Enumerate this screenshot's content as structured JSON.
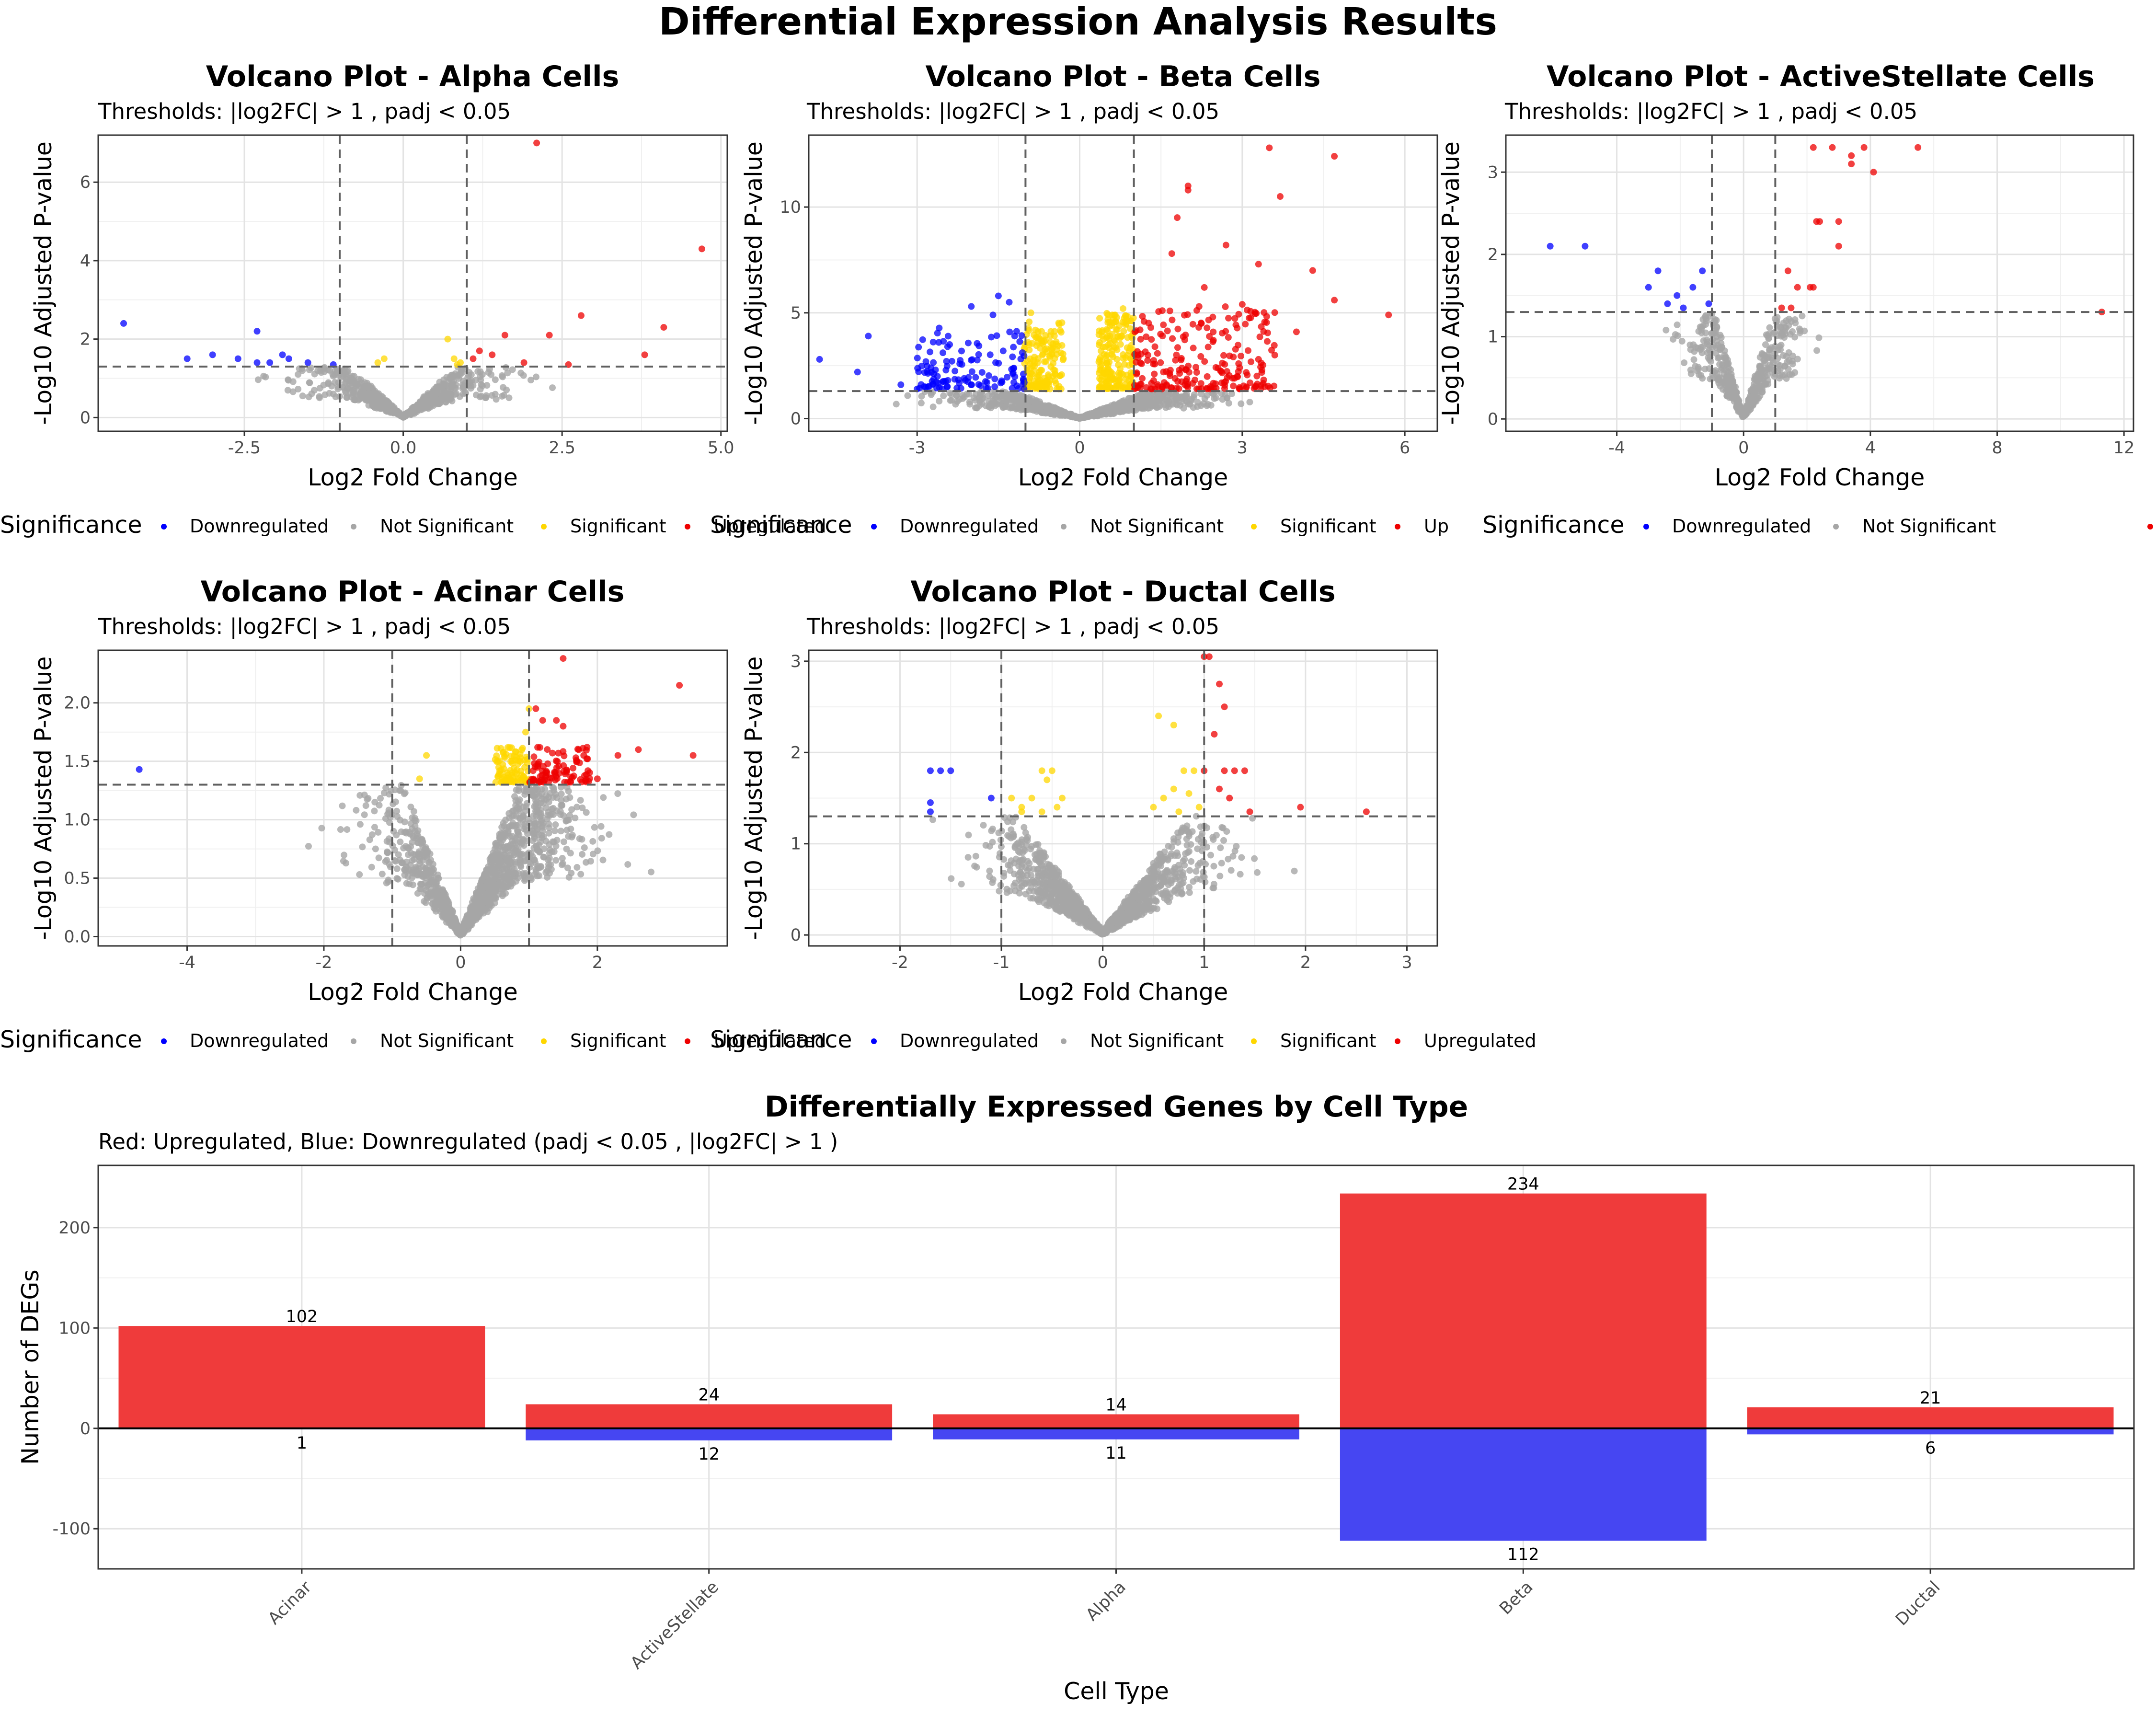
{
  "main_title": "Differential Expression Analysis Results",
  "colors": {
    "Downregulated": "#0000ff",
    "Not Significant": "#a6a6a6",
    "Significant": "#ffd700",
    "Upregulated": "#ee0000",
    "bar_up": "#ef3b3b",
    "bar_down": "#4646f2"
  },
  "chart_data": [
    {
      "type": "scatter",
      "title": "Volcano Plot - Alpha Cells",
      "subtitle": "Thresholds: |log2FC| > 1 , padj < 0.05",
      "xlabel": "Log2 Fold Change",
      "ylabel": "-Log10 Adjusted P-value",
      "xlim": [
        -4.8,
        5.1
      ],
      "ylim": [
        -0.35,
        7.2
      ],
      "xticks": [
        -2.5,
        0.0,
        2.5,
        5.0
      ],
      "xtick_labels": [
        "-2.5",
        "0.0",
        "2.5",
        "5.0"
      ],
      "yticks": [
        0,
        2,
        4,
        6
      ],
      "ytick_labels": [
        "0",
        "2",
        "4",
        "6"
      ],
      "thresholds": {
        "x": [
          -1,
          1
        ],
        "y": 1.3
      },
      "legend": {
        "title": "Significance",
        "position": "bottom",
        "labels": [
          "Downregulated",
          "Not Significant",
          "Significant",
          "Upregulated"
        ]
      },
      "cloud": {
        "spread": 1.6,
        "ymax": 1.3,
        "n": 700,
        "seed": 11
      },
      "series": [
        {
          "name": "Downregulated",
          "points": [
            [
              -4.4,
              2.4
            ],
            [
              -3.4,
              1.5
            ],
            [
              -3.0,
              1.6
            ],
            [
              -2.6,
              1.5
            ],
            [
              -2.3,
              2.2
            ],
            [
              -2.3,
              1.4
            ],
            [
              -2.1,
              1.4
            ],
            [
              -1.9,
              1.6
            ],
            [
              -1.8,
              1.5
            ],
            [
              -1.5,
              1.4
            ],
            [
              -1.1,
              1.35
            ]
          ]
        },
        {
          "name": "Significant",
          "points": [
            [
              -0.4,
              1.4
            ],
            [
              -0.3,
              1.5
            ],
            [
              0.7,
              2.0
            ],
            [
              0.8,
              1.5
            ],
            [
              0.9,
              1.4
            ],
            [
              0.85,
              1.35
            ]
          ]
        },
        {
          "name": "Upregulated",
          "points": [
            [
              2.1,
              7.0
            ],
            [
              4.7,
              4.3
            ],
            [
              1.2,
              1.7
            ],
            [
              1.4,
              1.6
            ],
            [
              1.6,
              2.1
            ],
            [
              2.3,
              2.1
            ],
            [
              2.8,
              2.6
            ],
            [
              3.8,
              1.6
            ],
            [
              4.1,
              2.3
            ],
            [
              1.1,
              1.5
            ],
            [
              1.9,
              1.4
            ],
            [
              2.6,
              1.35
            ]
          ]
        }
      ]
    },
    {
      "type": "scatter",
      "title": "Volcano Plot - Beta Cells",
      "subtitle": "Thresholds: |log2FC| > 1 , padj < 0.05",
      "xlabel": "Log2 Fold Change",
      "ylabel": "-Log10 Adjusted P-value",
      "xlim": [
        -5.0,
        6.6
      ],
      "ylim": [
        -0.6,
        13.4
      ],
      "xticks": [
        -3,
        0,
        3,
        6
      ],
      "xtick_labels": [
        "-3",
        "0",
        "3",
        "6"
      ],
      "yticks": [
        0,
        5,
        10
      ],
      "ytick_labels": [
        "0",
        "5",
        "10"
      ],
      "thresholds": {
        "x": [
          -1,
          1
        ],
        "y": 1.3
      },
      "legend": {
        "title": "Significance",
        "position": "bottom",
        "labels": [
          "Downregulated",
          "Not Significant",
          "Significant",
          "Up"
        ]
      },
      "cloud": {
        "spread": 2.4,
        "ymax": 1.3,
        "n": 900,
        "seed": 23
      },
      "band_clusters": [
        {
          "series": "Significant",
          "xmin": -1.05,
          "xmax": -0.3,
          "ymin": 1.4,
          "ymax": 4.6,
          "n": 150,
          "seed": 3
        },
        {
          "series": "Significant",
          "xmin": 0.35,
          "xmax": 1.0,
          "ymin": 1.4,
          "ymax": 5.0,
          "n": 190,
          "seed": 4
        },
        {
          "series": "Downregulated",
          "xmin": -3.0,
          "xmax": -1.0,
          "ymin": 1.4,
          "ymax": 4.4,
          "n": 120,
          "seed": 5
        },
        {
          "series": "Upregulated",
          "xmin": 1.0,
          "xmax": 3.6,
          "ymin": 1.4,
          "ymax": 5.3,
          "n": 220,
          "seed": 6
        }
      ],
      "series": [
        {
          "name": "Downregulated",
          "points": [
            [
              -4.8,
              2.8
            ],
            [
              -4.1,
              2.2
            ],
            [
              -3.9,
              3.9
            ],
            [
              -3.3,
              1.6
            ],
            [
              -3.0,
              1.4
            ],
            [
              -2.6,
              3.6
            ],
            [
              -2.4,
              3.5
            ],
            [
              -2.0,
              5.3
            ],
            [
              -1.5,
              5.8
            ],
            [
              -1.3,
              5.5
            ],
            [
              -1.6,
              4.9
            ],
            [
              -1.2,
              3.9
            ]
          ]
        },
        {
          "name": "Significant",
          "points": [
            [
              -0.9,
              5.0
            ],
            [
              0.8,
              5.2
            ],
            [
              0.6,
              4.9
            ]
          ]
        },
        {
          "name": "Upregulated",
          "points": [
            [
              3.5,
              12.8
            ],
            [
              4.7,
              12.4
            ],
            [
              2.0,
              11.0
            ],
            [
              2.0,
              10.8
            ],
            [
              3.7,
              10.5
            ],
            [
              1.8,
              9.5
            ],
            [
              1.7,
              7.8
            ],
            [
              2.7,
              8.2
            ],
            [
              3.3,
              7.3
            ],
            [
              4.3,
              7.0
            ],
            [
              4.7,
              5.6
            ],
            [
              5.7,
              4.9
            ],
            [
              2.3,
              6.2
            ],
            [
              3.0,
              5.4
            ],
            [
              4.0,
              4.1
            ],
            [
              3.3,
              2.8
            ],
            [
              3.6,
              3.0
            ]
          ]
        }
      ]
    },
    {
      "type": "scatter",
      "title": "Volcano Plot - ActiveStellate Cells",
      "subtitle": "Thresholds: |log2FC| > 1 , padj < 0.05",
      "xlabel": "Log2 Fold Change",
      "ylabel": "-Log10 Adjusted P-value",
      "xlim": [
        -7.5,
        12.3
      ],
      "ylim": [
        -0.15,
        3.45
      ],
      "xticks": [
        -4,
        0,
        4,
        8,
        12
      ],
      "xtick_labels": [
        "-4",
        "0",
        "4",
        "8",
        "12"
      ],
      "yticks": [
        0,
        1,
        2,
        3
      ],
      "ytick_labels": [
        "0",
        "1",
        "2",
        "3"
      ],
      "thresholds": {
        "x": [
          -1,
          1
        ],
        "y": 1.3
      },
      "legend": {
        "title": "Significance",
        "position": "bottom",
        "labels": [
          "Downregulated",
          "Not Significant",
          "Upregulated"
        ]
      },
      "cloud": {
        "spread": 1.8,
        "ymax": 1.3,
        "n": 500,
        "seed": 31
      },
      "series": [
        {
          "name": "Downregulated",
          "points": [
            [
              -6.1,
              2.1
            ],
            [
              -5.0,
              2.1
            ],
            [
              -3.0,
              1.6
            ],
            [
              -2.7,
              1.8
            ],
            [
              -2.4,
              1.4
            ],
            [
              -1.9,
              1.35
            ],
            [
              -1.6,
              1.6
            ],
            [
              -1.3,
              1.8
            ],
            [
              -1.1,
              1.4
            ],
            [
              -2.1,
              1.5
            ]
          ]
        },
        {
          "name": "Upregulated",
          "points": [
            [
              2.2,
              3.3
            ],
            [
              3.8,
              3.3
            ],
            [
              5.5,
              3.3
            ],
            [
              2.8,
              3.3
            ],
            [
              3.4,
              3.2
            ],
            [
              3.4,
              3.1
            ],
            [
              4.1,
              3.0
            ],
            [
              2.3,
              2.4
            ],
            [
              2.4,
              2.4
            ],
            [
              3.0,
              2.4
            ],
            [
              1.4,
              1.8
            ],
            [
              1.7,
              1.6
            ],
            [
              2.1,
              1.6
            ],
            [
              2.2,
              1.6
            ],
            [
              3.0,
              2.1
            ],
            [
              11.3,
              1.3
            ],
            [
              1.5,
              1.35
            ],
            [
              1.2,
              1.35
            ]
          ]
        }
      ]
    },
    {
      "type": "scatter",
      "title": "Volcano Plot - Acinar Cells",
      "subtitle": "Thresholds: |log2FC| > 1 , padj < 0.05",
      "xlabel": "Log2 Fold Change",
      "ylabel": "-Log10 Adjusted P-value",
      "xlim": [
        -5.3,
        3.9
      ],
      "ylim": [
        -0.08,
        2.45
      ],
      "xticks": [
        -4,
        -2,
        0,
        2
      ],
      "xtick_labels": [
        "-4",
        "-2",
        "0",
        "2"
      ],
      "yticks": [
        0.0,
        0.5,
        1.0,
        1.5,
        2.0
      ],
      "ytick_labels": [
        "0.0",
        "0.5",
        "1.0",
        "1.5",
        "2.0"
      ],
      "thresholds": {
        "x": [
          -1,
          1
        ],
        "y": 1.3
      },
      "legend": {
        "title": "Significance",
        "position": "bottom",
        "labels": [
          "Downregulated",
          "Not Significant",
          "Significant",
          "Upregulated"
        ]
      },
      "cloud": {
        "spread": 1.5,
        "ymax": 1.3,
        "n": 1300,
        "seed": 41,
        "skew": 0.6
      },
      "band_clusters": [
        {
          "series": "Significant",
          "xmin": 0.5,
          "xmax": 1.0,
          "ymin": 1.32,
          "ymax": 1.62,
          "n": 90,
          "seed": 7
        },
        {
          "series": "Upregulated",
          "xmin": 1.0,
          "xmax": 1.9,
          "ymin": 1.32,
          "ymax": 1.62,
          "n": 90,
          "seed": 8
        }
      ],
      "series": [
        {
          "name": "Downregulated",
          "points": [
            [
              -4.7,
              1.43
            ]
          ]
        },
        {
          "name": "Significant",
          "points": [
            [
              -0.5,
              1.55
            ],
            [
              -0.6,
              1.35
            ],
            [
              0.95,
              1.75
            ],
            [
              1.0,
              1.95
            ]
          ]
        },
        {
          "name": "Upregulated",
          "points": [
            [
              1.5,
              2.38
            ],
            [
              3.2,
              2.15
            ],
            [
              1.1,
              1.95
            ],
            [
              1.2,
              1.85
            ],
            [
              1.4,
              1.85
            ],
            [
              1.5,
              1.8
            ],
            [
              2.3,
              1.55
            ],
            [
              2.6,
              1.6
            ],
            [
              3.4,
              1.55
            ],
            [
              2.0,
              1.35
            ],
            [
              1.8,
              1.55
            ]
          ]
        }
      ]
    },
    {
      "type": "scatter",
      "title": "Volcano Plot - Ductal Cells",
      "subtitle": "Thresholds: |log2FC| > 1 , padj < 0.05",
      "xlabel": "Log2 Fold Change",
      "ylabel": "-Log10 Adjusted P-value",
      "xlim": [
        -2.9,
        3.3
      ],
      "ylim": [
        -0.12,
        3.12
      ],
      "xticks": [
        -2,
        -1,
        0,
        1,
        2,
        3
      ],
      "xtick_labels": [
        "-2",
        "-1",
        "0",
        "1",
        "2",
        "3"
      ],
      "yticks": [
        0,
        1,
        2,
        3
      ],
      "ytick_labels": [
        "0",
        "1",
        "2",
        "3"
      ],
      "thresholds": {
        "x": [
          -1,
          1
        ],
        "y": 1.3
      },
      "legend": {
        "title": "Significance",
        "position": "bottom",
        "labels": [
          "Downregulated",
          "Not Significant",
          "Significant",
          "Upregulated"
        ]
      },
      "cloud": {
        "spread": 1.1,
        "ymax": 1.3,
        "n": 1300,
        "seed": 51
      },
      "series": [
        {
          "name": "Downregulated",
          "points": [
            [
              -1.7,
              1.8
            ],
            [
              -1.6,
              1.8
            ],
            [
              -1.5,
              1.8
            ],
            [
              -1.7,
              1.45
            ],
            [
              -1.1,
              1.5
            ],
            [
              -1.7,
              1.35
            ]
          ]
        },
        {
          "name": "Significant",
          "points": [
            [
              -0.9,
              1.5
            ],
            [
              -0.8,
              1.4
            ],
            [
              -0.7,
              1.5
            ],
            [
              -0.6,
              1.8
            ],
            [
              -0.5,
              1.8
            ],
            [
              -0.55,
              1.7
            ],
            [
              -0.4,
              1.5
            ],
            [
              -0.45,
              1.4
            ],
            [
              -0.8,
              1.35
            ],
            [
              -0.6,
              1.35
            ],
            [
              0.5,
              1.4
            ],
            [
              0.6,
              1.5
            ],
            [
              0.7,
              1.6
            ],
            [
              0.8,
              1.8
            ],
            [
              0.9,
              1.8
            ],
            [
              0.85,
              1.55
            ],
            [
              0.95,
              1.4
            ],
            [
              0.55,
              2.4
            ],
            [
              0.7,
              2.3
            ],
            [
              0.75,
              1.35
            ]
          ]
        },
        {
          "name": "Upregulated",
          "points": [
            [
              1.0,
              3.05
            ],
            [
              1.05,
              3.05
            ],
            [
              1.15,
              2.75
            ],
            [
              1.2,
              2.5
            ],
            [
              1.1,
              2.2
            ],
            [
              1.0,
              1.8
            ],
            [
              1.2,
              1.8
            ],
            [
              1.3,
              1.8
            ],
            [
              1.4,
              1.8
            ],
            [
              1.15,
              1.6
            ],
            [
              1.25,
              1.5
            ],
            [
              1.45,
              1.35
            ],
            [
              1.95,
              1.4
            ],
            [
              2.6,
              1.35
            ]
          ]
        }
      ]
    },
    {
      "type": "bar",
      "title": "Differentially Expressed Genes by Cell Type",
      "subtitle": "Red: Upregulated, Blue: Downregulated (padj < 0.05 , |log2FC| > 1 )",
      "xlabel": "Cell Type",
      "ylabel": "Number of DEGs",
      "categories": [
        "Acinar",
        "ActiveStellate",
        "Alpha",
        "Beta",
        "Ductal"
      ],
      "series": [
        {
          "name": "Upregulated",
          "values": [
            102,
            24,
            14,
            234,
            21
          ]
        },
        {
          "name": "Downregulated",
          "values": [
            1,
            12,
            11,
            112,
            6
          ]
        }
      ],
      "ylim": [
        -140,
        262
      ],
      "yticks": [
        -100,
        0,
        100,
        200
      ],
      "ytick_labels": [
        "-100",
        "0",
        "100",
        "200"
      ]
    }
  ]
}
